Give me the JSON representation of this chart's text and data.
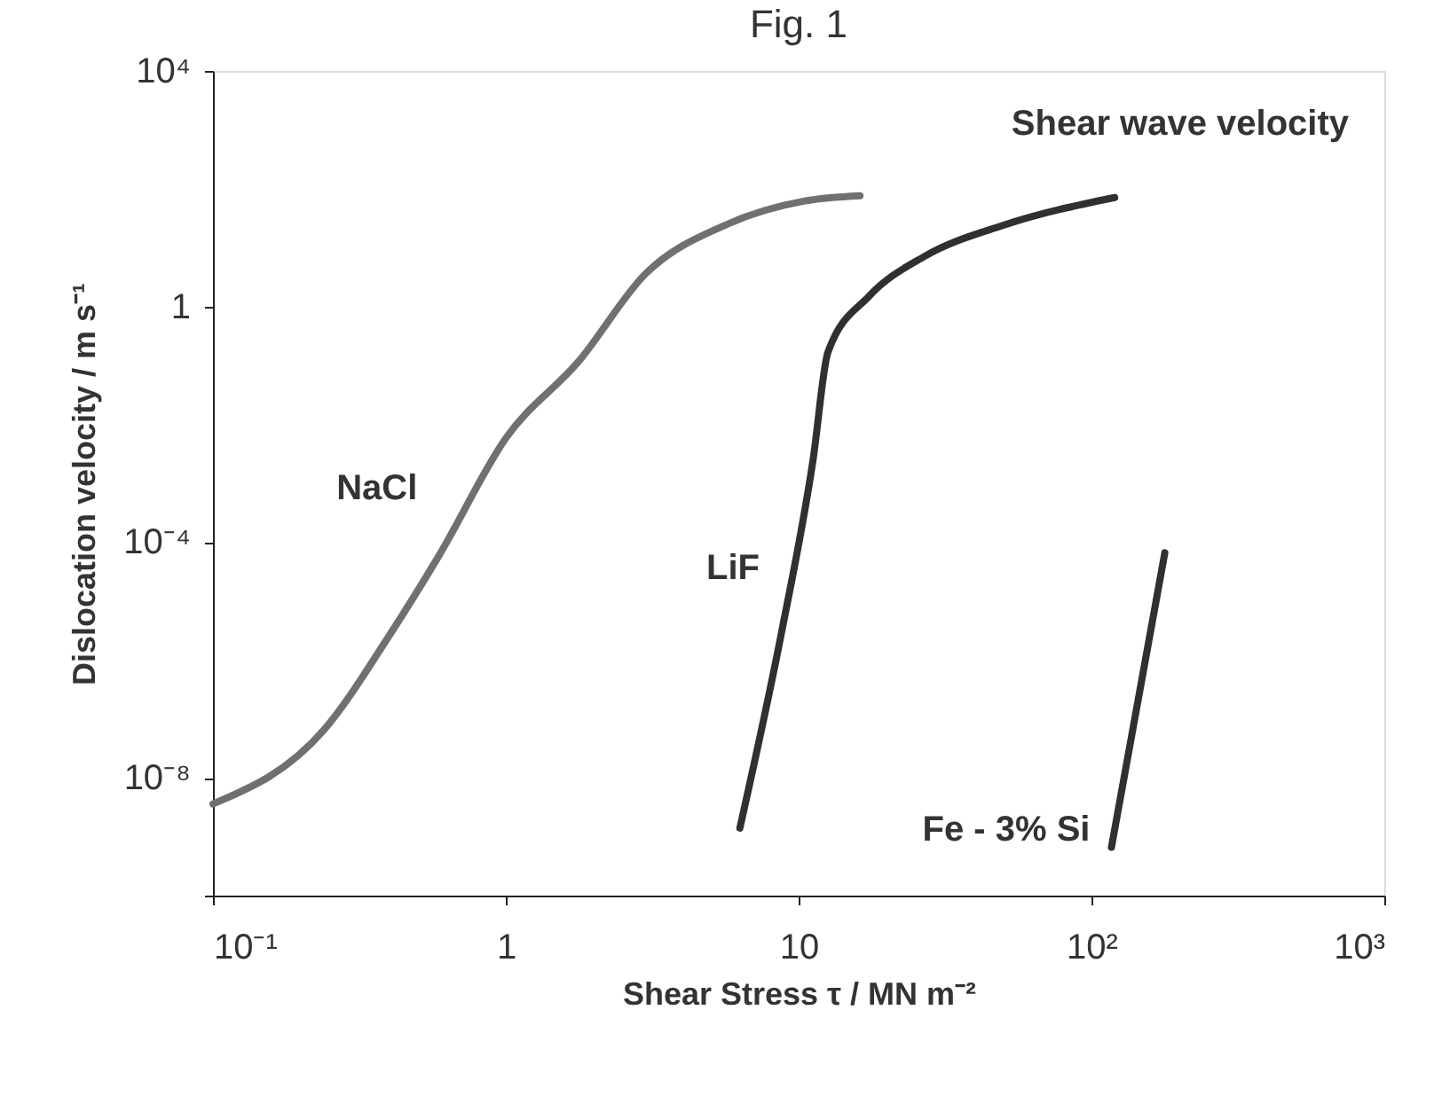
{
  "chart_data": {
    "type": "line",
    "title": "Fig. 1",
    "xlabel": "Shear Stress τ / MN m⁻²",
    "ylabel": "Dislocation velocity / m s⁻¹",
    "log": "xy",
    "grid": false,
    "marker": "none",
    "line_style": "solid",
    "xlim": [
      0.1,
      1000
    ],
    "ylim": [
      1e-10,
      10000
    ],
    "xticks": [
      {
        "value": 0.1,
        "label": "10⁻¹"
      },
      {
        "value": 1,
        "label": "1"
      },
      {
        "value": 10,
        "label": "10"
      },
      {
        "value": 100,
        "label": "10²"
      },
      {
        "value": 1000,
        "label": "10³"
      }
    ],
    "yticks": [
      {
        "value": 1e-10,
        "label": null
      },
      {
        "value": 1e-08,
        "label": "10⁻⁸"
      },
      {
        "value": 0.0001,
        "label": "10⁻⁴"
      },
      {
        "value": 1,
        "label": "1"
      },
      {
        "value": 10000,
        "label": "10⁴"
      }
    ],
    "annotations": [
      "Shear wave velocity"
    ],
    "series": [
      {
        "name": "NaCl",
        "color": "#707070",
        "x": [
          0.1,
          0.24,
          0.4,
          0.59,
          1.0,
          1.78,
          3.0,
          5.6,
          10.5,
          16.2
        ],
        "values": [
          3.6e-09,
          6.6e-08,
          2.6e-06,
          5.8e-05,
          0.0058,
          0.12,
          3.6,
          24,
          62,
          76
        ]
      },
      {
        "name": "LiF",
        "color": "#303030",
        "x": [
          6.3,
          8.7,
          11.2,
          12.6,
          17.4,
          26.9,
          50,
          120
        ],
        "values": [
          1.4e-09,
          2.6e-06,
          0.0025,
          0.17,
          1.5,
          7.1,
          24,
          71
        ]
      },
      {
        "name": "Fe - 3% Si",
        "color": "#303030",
        "x": [
          117,
          178
        ],
        "values": [
          6.6e-10,
          6.6e-05
        ]
      }
    ]
  }
}
